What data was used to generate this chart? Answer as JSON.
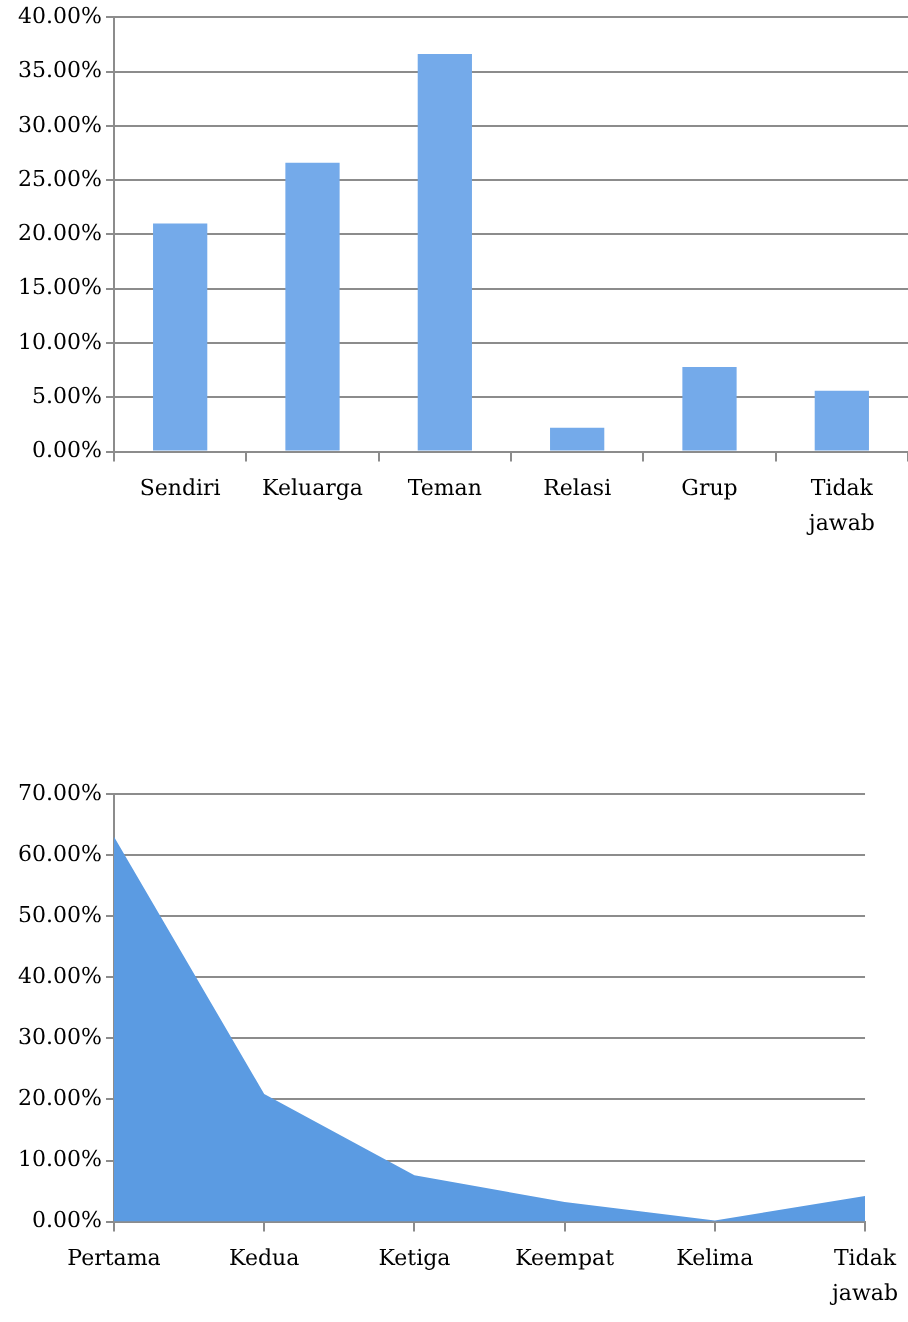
{
  "chart_data": [
    {
      "type": "bar",
      "categories": [
        "Sendiri",
        "Keluarga",
        "Teman",
        "Relasi",
        "Grup",
        "Tidak jawab"
      ],
      "values": [
        21.0,
        26.6,
        36.6,
        2.2,
        7.8,
        5.6
      ],
      "color": "#74aaea",
      "ylim": [
        0,
        40
      ],
      "yticks": [
        {
          "value": 0,
          "label": "0.00%"
        },
        {
          "value": 5,
          "label": "5.00%"
        },
        {
          "value": 10,
          "label": "10.00%"
        },
        {
          "value": 15,
          "label": "15.00%"
        },
        {
          "value": 20,
          "label": "20.00%"
        },
        {
          "value": 25,
          "label": "25.00%"
        },
        {
          "value": 30,
          "label": "30.00%"
        },
        {
          "value": 35,
          "label": "35.00%"
        },
        {
          "value": 40,
          "label": "40.00%"
        }
      ],
      "grid": "y"
    },
    {
      "type": "area",
      "categories": [
        "Pertama",
        "Kedua",
        "Ketiga",
        "Keempat",
        "Kelima",
        "Tidak jawab"
      ],
      "values": [
        63.0,
        20.9,
        7.6,
        3.2,
        0.2,
        4.2
      ],
      "color": "#5b9be2",
      "ylim": [
        0,
        70
      ],
      "yticks": [
        {
          "value": 0,
          "label": "0.00%"
        },
        {
          "value": 10,
          "label": "10.00%"
        },
        {
          "value": 20,
          "label": "20.00%"
        },
        {
          "value": 30,
          "label": "30.00%"
        },
        {
          "value": 40,
          "label": "40.00%"
        },
        {
          "value": 50,
          "label": "50.00%"
        },
        {
          "value": 60,
          "label": "60.00%"
        },
        {
          "value": 70,
          "label": "70.00%"
        }
      ],
      "grid": "y"
    }
  ]
}
